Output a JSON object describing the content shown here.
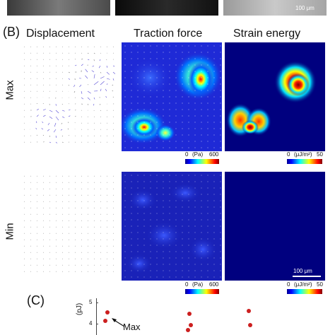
{
  "panel_b": {
    "letter": "(B)",
    "columns": [
      "Displacement",
      "Traction force",
      "Strain energy"
    ],
    "rows": [
      "Max",
      "Min"
    ]
  },
  "top_strip": {
    "scale_label": "100 μm"
  },
  "colorbars": {
    "traction": {
      "min": "0",
      "unit": "(Pa)",
      "max": "600"
    },
    "strain": {
      "min": "0",
      "unit": "(μJ/m²)",
      "max": "50"
    }
  },
  "scale_bar_label": "100 μm",
  "panel_c": {
    "letter": "(C)",
    "ylabel": "(pJ)",
    "ticks": [
      "5",
      "4"
    ],
    "annotation": "Max"
  },
  "colors": {
    "deep_blue": "#00007f",
    "blue": "#1f2ad6",
    "red": "#cc1f1f",
    "arrow": "#5a4fd6"
  }
}
